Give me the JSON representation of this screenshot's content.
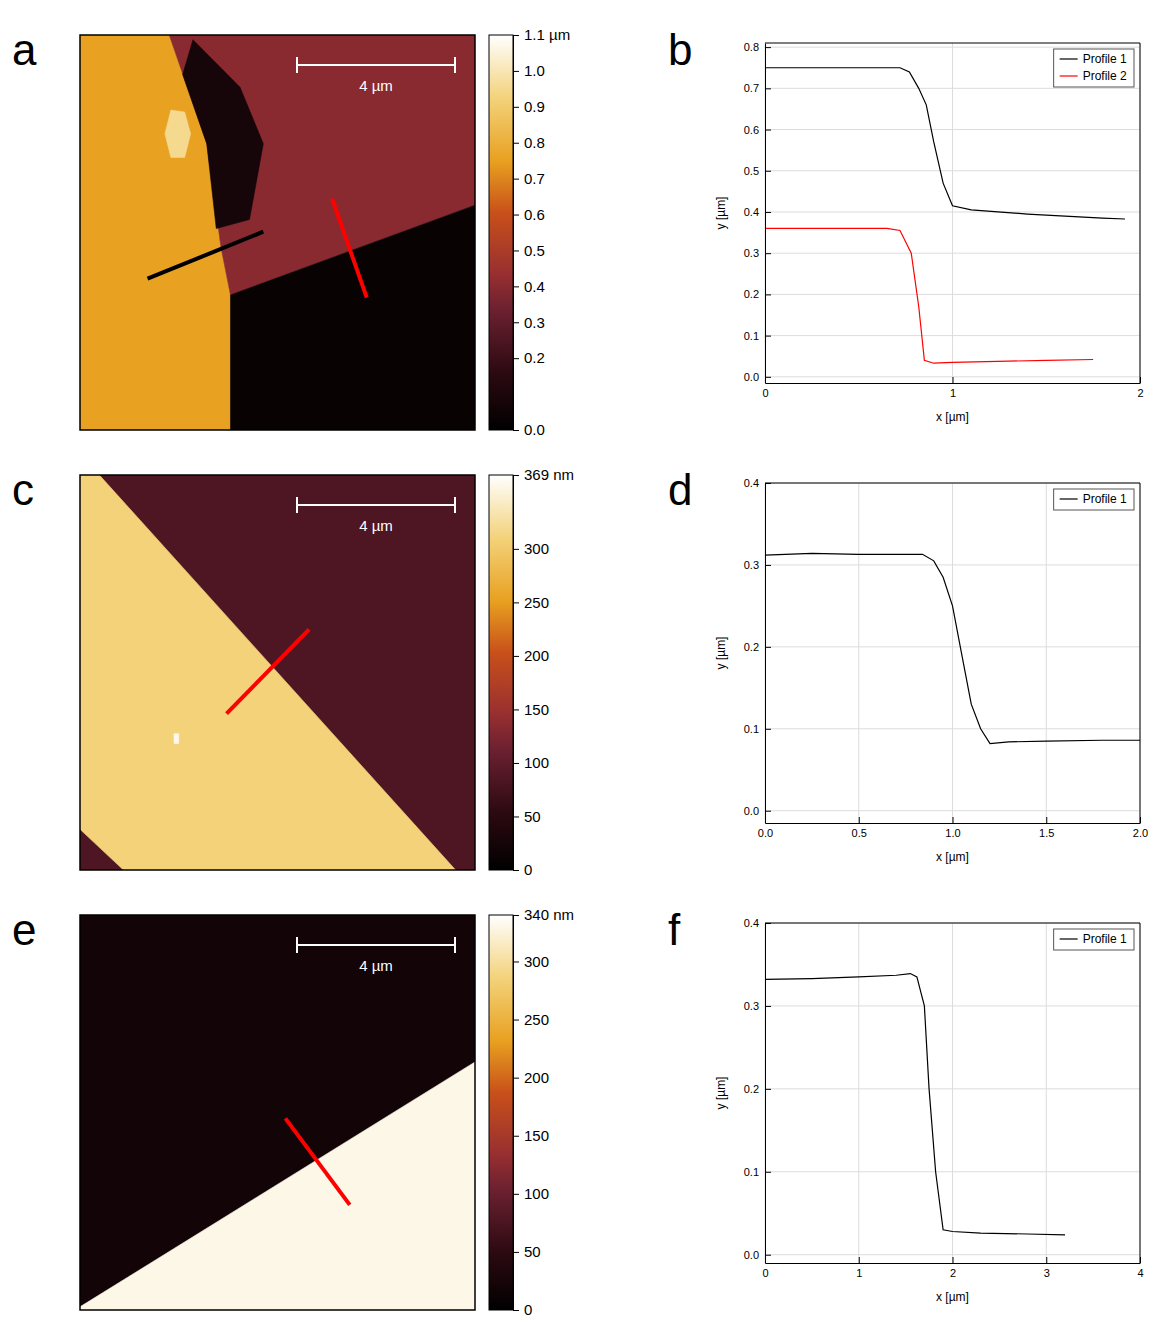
{
  "chart_data": [
    {
      "type": "heatmap",
      "panel": "a",
      "x_extent": [
        0,
        10
      ],
      "y_extent": [
        0,
        10
      ],
      "regions": [
        {
          "height": 0.75,
          "polygon": [
            [
              0,
              0
            ],
            [
              2.26,
              0
            ],
            [
              3.21,
              2.75
            ],
            [
              3.57,
              5.38
            ],
            [
              3.81,
              6.58
            ],
            [
              3.81,
              10
            ],
            [
              0,
              10
            ]
          ]
        },
        {
          "height": 0.4,
          "polygon": [
            [
              2.26,
              0
            ],
            [
              10,
              0
            ],
            [
              10,
              4.31
            ],
            [
              3.81,
              6.58
            ],
            [
              3.57,
              5.38
            ],
            [
              3.21,
              2.75
            ]
          ]
        },
        {
          "height": 0.03,
          "polygon": [
            [
              3.81,
              6.58
            ],
            [
              10,
              4.31
            ],
            [
              10,
              10
            ],
            [
              3.81,
              10
            ]
          ]
        },
        {
          "height": 0.08,
          "polygon": [
            [
              2.86,
              0.12
            ],
            [
              4.05,
              1.32
            ],
            [
              4.64,
              2.75
            ],
            [
              4.29,
              4.67
            ],
            [
              3.45,
              4.9
            ],
            [
              3.21,
              2.75
            ],
            [
              2.6,
              1.0
            ]
          ]
        },
        {
          "height": 0.95,
          "polygon": [
            [
              2.3,
              1.9
            ],
            [
              2.65,
              1.95
            ],
            [
              2.8,
              2.5
            ],
            [
              2.65,
              3.1
            ],
            [
              2.3,
              3.1
            ],
            [
              2.15,
              2.5
            ]
          ]
        }
      ],
      "colorbar": {
        "range": [
          0,
          1.1
        ],
        "ticks": [
          {
            "value": 0,
            "label": "0.0"
          },
          0.2,
          0.3,
          0.4,
          0.5,
          0.6,
          0.7,
          0.8,
          0.9,
          {
            "value": 1.0,
            "label": "1.0"
          },
          {
            "value": 1.1,
            "label": "1.1 µm"
          }
        ]
      },
      "scale_bar": {
        "length": 4,
        "label": "4 µm"
      },
      "profile_lines": [
        {
          "color": "#000000",
          "points": [
            [
              1.71,
              6.17
            ],
            [
              4.64,
              4.98
            ]
          ]
        },
        {
          "color": "#ff0000",
          "points": [
            [
              6.38,
              4.14
            ],
            [
              7.26,
              6.65
            ]
          ]
        }
      ]
    },
    {
      "type": "line",
      "panel": "b",
      "x_label": "x [µm]",
      "y_label": "y [µm]",
      "xlim": [
        0,
        2
      ],
      "ylim": [
        -0.015,
        0.81
      ],
      "xticks": [
        0,
        1,
        2
      ],
      "yticks": [
        {
          "value": 0,
          "label": "0.0"
        },
        0.1,
        0.2,
        0.3,
        0.4,
        0.5,
        0.6,
        0.7,
        0.8
      ],
      "grid": true,
      "legend": "top-right",
      "series": [
        {
          "name": "Profile 1",
          "color": "#000000",
          "x": [
            0,
            0.72,
            0.77,
            0.82,
            0.86,
            0.9,
            0.95,
            1.0,
            1.1,
            1.4,
            1.6,
            1.8,
            1.92
          ],
          "values": [
            0.75,
            0.75,
            0.74,
            0.7,
            0.66,
            0.57,
            0.47,
            0.415,
            0.405,
            0.395,
            0.39,
            0.385,
            0.383
          ]
        },
        {
          "name": "Profile 2",
          "color": "#ff0000",
          "x": [
            0,
            0.65,
            0.72,
            0.78,
            0.82,
            0.85,
            0.9,
            1.0,
            1.3,
            1.5,
            1.75
          ],
          "values": [
            0.36,
            0.36,
            0.355,
            0.3,
            0.17,
            0.04,
            0.033,
            0.035,
            0.038,
            0.04,
            0.042
          ]
        }
      ]
    },
    {
      "type": "heatmap",
      "panel": "c",
      "x_extent": [
        0,
        10
      ],
      "y_extent": [
        0,
        10
      ],
      "regions": [
        {
          "height": 85,
          "polygon": [
            [
              0,
              0
            ],
            [
              10,
              0
            ],
            [
              10,
              10
            ],
            [
              0,
              10
            ]
          ]
        },
        {
          "height": 310,
          "polygon": [
            [
              0,
              0
            ],
            [
              0.49,
              0
            ],
            [
              9.51,
              10
            ],
            [
              1.1,
              10
            ],
            [
              0,
              8.97
            ]
          ]
        },
        {
          "height": 360,
          "polygon": [
            [
              2.38,
              6.55
            ],
            [
              2.5,
              6.55
            ],
            [
              2.5,
              6.8
            ],
            [
              2.38,
              6.8
            ]
          ]
        }
      ],
      "colorbar": {
        "range": [
          0,
          369
        ],
        "ticks": [
          0,
          50,
          100,
          150,
          200,
          250,
          300,
          {
            "value": 369,
            "label": "369 nm"
          }
        ]
      },
      "scale_bar": {
        "length": 4,
        "label": "4 µm"
      },
      "profile_lines": [
        {
          "color": "#ff0000",
          "points": [
            [
              3.71,
              6.04
            ],
            [
              5.8,
              3.91
            ]
          ]
        }
      ]
    },
    {
      "type": "line",
      "panel": "d",
      "x_label": "x [µm]",
      "y_label": "y [µm]",
      "xlim": [
        0,
        2
      ],
      "ylim": [
        -0.015,
        0.4
      ],
      "xticks": [
        {
          "value": 0,
          "label": "0.0"
        },
        0.5,
        {
          "value": 1,
          "label": "1.0"
        },
        1.5,
        {
          "value": 2,
          "label": "2.0"
        }
      ],
      "yticks": [
        {
          "value": 0,
          "label": "0.0"
        },
        0.1,
        0.2,
        0.3,
        0.4
      ],
      "grid": true,
      "legend": "top-right",
      "series": [
        {
          "name": "Profile 1",
          "color": "#000000",
          "x": [
            0,
            0.25,
            0.5,
            0.84,
            0.9,
            0.95,
            1.0,
            1.05,
            1.1,
            1.15,
            1.2,
            1.3,
            1.5,
            1.8,
            2.0
          ],
          "values": [
            0.312,
            0.314,
            0.313,
            0.313,
            0.305,
            0.285,
            0.25,
            0.19,
            0.13,
            0.1,
            0.082,
            0.084,
            0.085,
            0.086,
            0.086
          ]
        }
      ]
    },
    {
      "type": "heatmap",
      "panel": "e",
      "x_extent": [
        0,
        10
      ],
      "y_extent": [
        0,
        10
      ],
      "regions": [
        {
          "height": 20,
          "polygon": [
            [
              0,
              0
            ],
            [
              10,
              0
            ],
            [
              10,
              10
            ],
            [
              0,
              10
            ]
          ]
        },
        {
          "height": 330,
          "polygon": [
            [
              0,
              9.92
            ],
            [
              10,
              3.72
            ],
            [
              10,
              10
            ],
            [
              0,
              10
            ]
          ]
        }
      ],
      "colorbar": {
        "range": [
          0,
          340
        ],
        "ticks": [
          0,
          50,
          100,
          150,
          200,
          250,
          300,
          {
            "value": 340,
            "label": "340 nm"
          }
        ]
      },
      "scale_bar": {
        "length": 4,
        "label": "4 µm"
      },
      "profile_lines": [
        {
          "color": "#ff0000",
          "points": [
            [
              5.2,
              5.15
            ],
            [
              6.83,
              7.34
            ]
          ]
        }
      ]
    },
    {
      "type": "line",
      "panel": "f",
      "x_label": "x [µm]",
      "y_label": "y [µm]",
      "xlim": [
        0,
        4
      ],
      "ylim": [
        -0.01,
        0.4
      ],
      "xticks": [
        0,
        1,
        2,
        3,
        4
      ],
      "yticks": [
        {
          "value": 0,
          "label": "0.0"
        },
        0.1,
        0.2,
        0.3,
        0.4
      ],
      "grid": true,
      "legend": "top-right",
      "series": [
        {
          "name": "Profile 1",
          "color": "#000000",
          "x": [
            0,
            0.5,
            1.0,
            1.4,
            1.55,
            1.62,
            1.7,
            1.75,
            1.82,
            1.9,
            2.0,
            2.3,
            2.8,
            3.2
          ],
          "values": [
            0.332,
            0.333,
            0.335,
            0.337,
            0.339,
            0.335,
            0.3,
            0.2,
            0.1,
            0.03,
            0.028,
            0.026,
            0.025,
            0.024
          ]
        }
      ]
    }
  ]
}
